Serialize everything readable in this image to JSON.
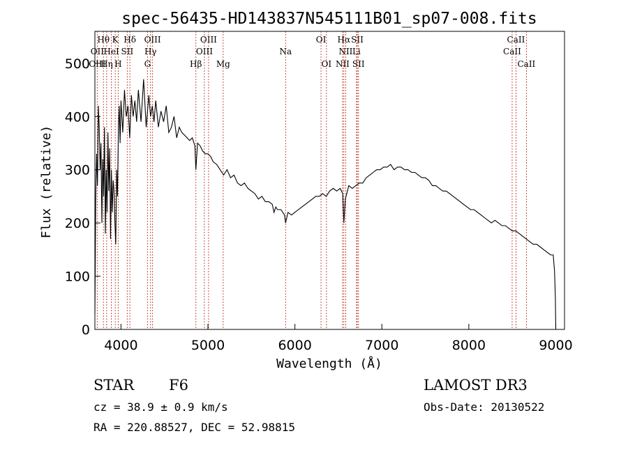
{
  "chart_data": {
    "type": "line",
    "title": "spec-56435-HD143837N545111B01_sp07-008.fits",
    "xlabel": "Wavelength (Å)",
    "ylabel": "Flux (relative)",
    "xlim": [
      3700,
      9100
    ],
    "ylim": [
      0,
      560
    ],
    "x_ticks": [
      4000,
      5000,
      6000,
      7000,
      8000,
      9000
    ],
    "y_ticks": [
      0,
      100,
      200,
      300,
      400,
      500
    ],
    "grid": false,
    "series": [
      {
        "color": "#000000",
        "x": [
          3700,
          3710,
          3720,
          3730,
          3740,
          3750,
          3760,
          3770,
          3780,
          3790,
          3800,
          3810,
          3820,
          3830,
          3840,
          3850,
          3860,
          3870,
          3880,
          3890,
          3900,
          3910,
          3920,
          3930,
          3940,
          3950,
          3960,
          3970,
          3980,
          3990,
          4000,
          4020,
          4040,
          4060,
          4080,
          4100,
          4120,
          4140,
          4160,
          4180,
          4200,
          4230,
          4260,
          4290,
          4320,
          4340,
          4360,
          4380,
          4400,
          4430,
          4460,
          4490,
          4520,
          4550,
          4580,
          4610,
          4640,
          4670,
          4700,
          4730,
          4760,
          4790,
          4820,
          4850,
          4861,
          4880,
          4910,
          4940,
          4970,
          5000,
          5030,
          5060,
          5100,
          5140,
          5180,
          5220,
          5260,
          5300,
          5340,
          5380,
          5420,
          5460,
          5500,
          5540,
          5580,
          5620,
          5660,
          5700,
          5740,
          5760,
          5780,
          5800,
          5840,
          5880,
          5893,
          5920,
          5960,
          6000,
          6040,
          6080,
          6120,
          6160,
          6200,
          6240,
          6280,
          6320,
          6360,
          6400,
          6440,
          6480,
          6520,
          6550,
          6563,
          6580,
          6620,
          6660,
          6700,
          6740,
          6780,
          6820,
          6860,
          6900,
          6940,
          6980,
          7020,
          7060,
          7100,
          7140,
          7180,
          7220,
          7260,
          7300,
          7340,
          7380,
          7420,
          7460,
          7500,
          7540,
          7580,
          7620,
          7660,
          7700,
          7740,
          7780,
          7820,
          7860,
          7900,
          7940,
          7980,
          8020,
          8060,
          8100,
          8140,
          8180,
          8220,
          8260,
          8300,
          8340,
          8380,
          8420,
          8460,
          8500,
          8540,
          8580,
          8620,
          8660,
          8700,
          8740,
          8780,
          8820,
          8860,
          8900,
          8940,
          8970,
          8985,
          8995,
          9000
        ],
        "y": [
          30,
          250,
          330,
          270,
          420,
          380,
          300,
          350,
          200,
          320,
          250,
          380,
          180,
          300,
          220,
          370,
          260,
          340,
          170,
          300,
          220,
          280,
          260,
          200,
          160,
          300,
          250,
          380,
          420,
          350,
          430,
          370,
          450,
          400,
          420,
          360,
          440,
          400,
          430,
          390,
          450,
          390,
          470,
          380,
          440,
          400,
          420,
          390,
          430,
          380,
          410,
          390,
          420,
          370,
          380,
          400,
          360,
          380,
          370,
          365,
          360,
          355,
          360,
          345,
          300,
          350,
          345,
          335,
          330,
          330,
          325,
          315,
          310,
          300,
          290,
          300,
          285,
          290,
          275,
          270,
          275,
          265,
          260,
          255,
          245,
          250,
          240,
          240,
          235,
          220,
          230,
          225,
          225,
          215,
          200,
          220,
          215,
          220,
          225,
          230,
          235,
          240,
          245,
          250,
          250,
          255,
          250,
          260,
          265,
          260,
          265,
          255,
          200,
          245,
          270,
          265,
          270,
          275,
          275,
          285,
          290,
          295,
          300,
          300,
          305,
          305,
          310,
          300,
          305,
          305,
          300,
          300,
          295,
          295,
          290,
          285,
          285,
          280,
          270,
          270,
          265,
          260,
          260,
          255,
          250,
          245,
          240,
          235,
          230,
          225,
          225,
          220,
          215,
          210,
          205,
          200,
          205,
          200,
          195,
          195,
          190,
          185,
          185,
          180,
          175,
          170,
          165,
          160,
          160,
          155,
          150,
          145,
          140,
          140,
          110,
          60,
          0
        ]
      }
    ],
    "line_markers": [
      {
        "label": "Hθ",
        "wave": 3798,
        "row": 1
      },
      {
        "label": "K",
        "wave": 3934,
        "row": 1
      },
      {
        "label": "Hδ",
        "wave": 4102,
        "row": 1
      },
      {
        "label": "OIII",
        "wave": 4363,
        "row": 1
      },
      {
        "label": "OIII",
        "wave": 5007,
        "row": 1
      },
      {
        "label": "OI",
        "wave": 6300,
        "row": 1
      },
      {
        "label": "Hα",
        "wave": 6563,
        "row": 1
      },
      {
        "label": "SII",
        "wave": 6717,
        "row": 1
      },
      {
        "label": "CaII",
        "wave": 8542,
        "row": 1
      },
      {
        "label": "OII",
        "wave": 3727,
        "row": 2
      },
      {
        "label": "HeI",
        "wave": 3889,
        "row": 2
      },
      {
        "label": "SII",
        "wave": 4072,
        "row": 2
      },
      {
        "label": "Hγ",
        "wave": 4340,
        "row": 2
      },
      {
        "label": "OIII",
        "wave": 4959,
        "row": 2
      },
      {
        "label": "Na",
        "wave": 5893,
        "row": 2
      },
      {
        "label": "NII",
        "wave": 6584,
        "row": 2
      },
      {
        "label": "Li",
        "wave": 6708,
        "row": 2
      },
      {
        "label": "CaII",
        "wave": 8498,
        "row": 2
      },
      {
        "label": "OIII",
        "wave": 3727,
        "row": 3
      },
      {
        "label": "Hη",
        "wave": 3835,
        "row": 3
      },
      {
        "label": "H",
        "wave": 3968,
        "row": 3
      },
      {
        "label": "G",
        "wave": 4305,
        "row": 3
      },
      {
        "label": "Hβ",
        "wave": 4861,
        "row": 3
      },
      {
        "label": "Mg",
        "wave": 5175,
        "row": 3
      },
      {
        "label": "OI",
        "wave": 6363,
        "row": 3
      },
      {
        "label": "NII",
        "wave": 6548,
        "row": 3
      },
      {
        "label": "SII",
        "wave": 6731,
        "row": 3
      },
      {
        "label": "CaII",
        "wave": 8662,
        "row": 3
      }
    ]
  },
  "info": {
    "object_class": "STAR",
    "subclass": "F6",
    "cz": "cz = 38.9 ± 0.9 km/s",
    "coords": "RA = 220.88527, DEC =  52.98815",
    "survey": "LAMOST DR3",
    "obs_date": "Obs-Date: 20130522"
  }
}
